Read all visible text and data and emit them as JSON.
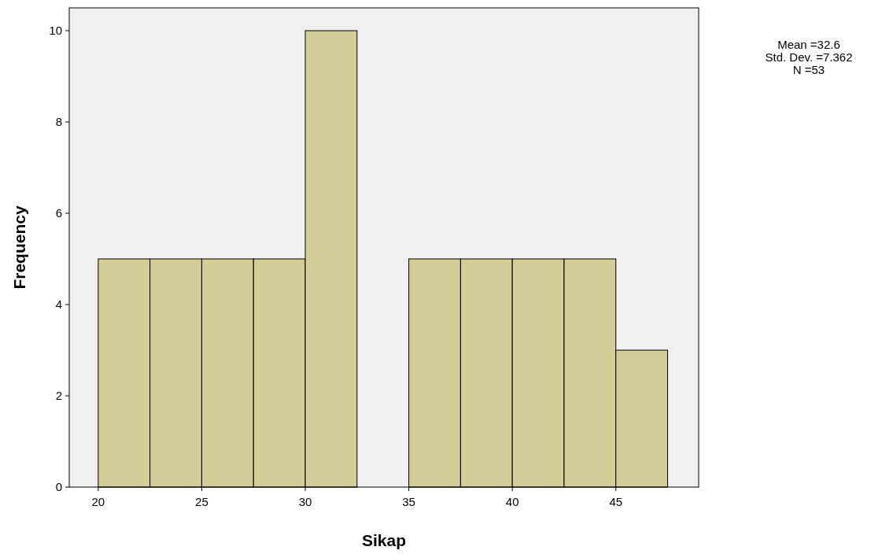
{
  "chart_data": {
    "type": "histogram",
    "xlabel": "Sikap",
    "ylabel": "Frequency",
    "bins": [
      20,
      22.5,
      25,
      27.5,
      30,
      32.5,
      35,
      37.5,
      40,
      42.5,
      45,
      47.5
    ],
    "values": [
      5,
      5,
      5,
      5,
      10,
      0,
      5,
      5,
      5,
      5,
      3
    ],
    "color": "#d3ce97",
    "xlim": [
      18.6,
      49
    ],
    "xticks": [
      20,
      25,
      30,
      35,
      40,
      45
    ],
    "ylim": [
      0,
      10.5
    ],
    "yticks": [
      0,
      2,
      4,
      6,
      8,
      10
    ],
    "grid": false,
    "annotations": [
      "Mean =32.6",
      "Std. Dev. =7.362",
      "N =53"
    ]
  }
}
